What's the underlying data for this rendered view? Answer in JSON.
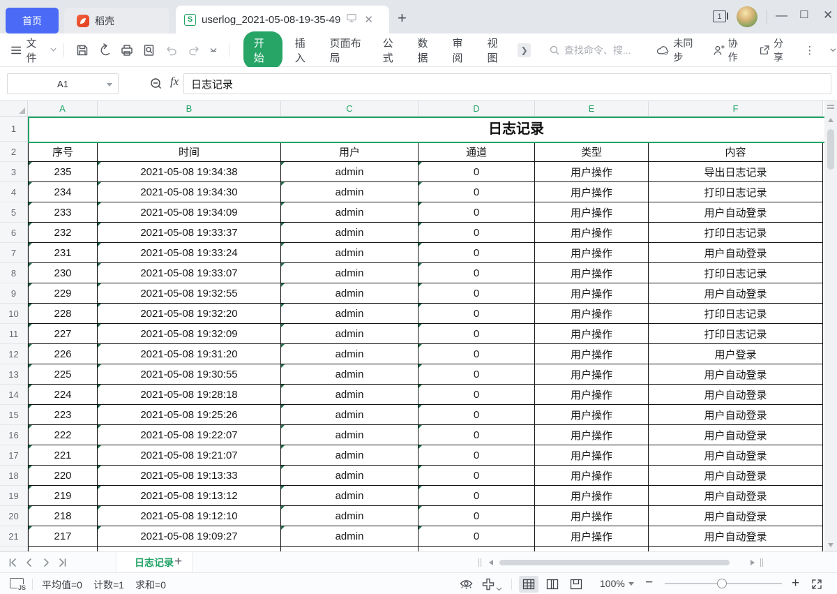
{
  "colors": {
    "accent_green": "#27a567",
    "selection_green": "#21a366",
    "home_blue": "#4b6bf7",
    "docer_orange": "#eb4b2e"
  },
  "tab_bar": {
    "home_label": "首页",
    "docer_label": "稻壳",
    "document_title": "userlog_2021-05-08-19-35-49",
    "window_count": "1"
  },
  "toolbar": {
    "file_label": "文件",
    "ribbon_tabs": [
      {
        "label": "开始",
        "active": true
      },
      {
        "label": "插入",
        "active": false
      },
      {
        "label": "页面布局",
        "active": false
      },
      {
        "label": "公式",
        "active": false
      },
      {
        "label": "数据",
        "active": false
      },
      {
        "label": "审阅",
        "active": false
      },
      {
        "label": "视图",
        "active": false
      }
    ],
    "more_label": "＞",
    "search_placeholder": "查找命令、搜...",
    "sync_label": "未同步",
    "collaborate_label": "协作",
    "share_label": "分享"
  },
  "formula_bar": {
    "name_box": "A1",
    "fx_label": "fx",
    "formula_value": "日志记录"
  },
  "grid": {
    "column_headers": [
      "A",
      "B",
      "C",
      "D",
      "E",
      "F"
    ],
    "row_numbers": [
      "1",
      "2",
      "3",
      "4",
      "5",
      "6",
      "7",
      "8",
      "9",
      "10",
      "11",
      "12",
      "13",
      "14",
      "15",
      "16",
      "17",
      "18",
      "19",
      "20",
      "21"
    ],
    "merged_title": "日志记录",
    "table_headers": [
      "序号",
      "时间",
      "用户",
      "通道",
      "类型",
      "内容"
    ],
    "rows": [
      [
        "235",
        "2021-05-08 19:34:38",
        "admin",
        "0",
        "用户操作",
        "导出日志记录"
      ],
      [
        "234",
        "2021-05-08 19:34:30",
        "admin",
        "0",
        "用户操作",
        "打印日志记录"
      ],
      [
        "233",
        "2021-05-08 19:34:09",
        "admin",
        "0",
        "用户操作",
        "用户自动登录"
      ],
      [
        "232",
        "2021-05-08 19:33:37",
        "admin",
        "0",
        "用户操作",
        "打印日志记录"
      ],
      [
        "231",
        "2021-05-08 19:33:24",
        "admin",
        "0",
        "用户操作",
        "用户自动登录"
      ],
      [
        "230",
        "2021-05-08 19:33:07",
        "admin",
        "0",
        "用户操作",
        "打印日志记录"
      ],
      [
        "229",
        "2021-05-08 19:32:55",
        "admin",
        "0",
        "用户操作",
        "用户自动登录"
      ],
      [
        "228",
        "2021-05-08 19:32:20",
        "admin",
        "0",
        "用户操作",
        "打印日志记录"
      ],
      [
        "227",
        "2021-05-08 19:32:09",
        "admin",
        "0",
        "用户操作",
        "打印日志记录"
      ],
      [
        "226",
        "2021-05-08 19:31:20",
        "admin",
        "0",
        "用户操作",
        "用户登录"
      ],
      [
        "225",
        "2021-05-08 19:30:55",
        "admin",
        "0",
        "用户操作",
        "用户自动登录"
      ],
      [
        "224",
        "2021-05-08 19:28:18",
        "admin",
        "0",
        "用户操作",
        "用户自动登录"
      ],
      [
        "223",
        "2021-05-08 19:25:26",
        "admin",
        "0",
        "用户操作",
        "用户自动登录"
      ],
      [
        "222",
        "2021-05-08 19:22:07",
        "admin",
        "0",
        "用户操作",
        "用户自动登录"
      ],
      [
        "221",
        "2021-05-08 19:21:07",
        "admin",
        "0",
        "用户操作",
        "用户自动登录"
      ],
      [
        "220",
        "2021-05-08 19:13:33",
        "admin",
        "0",
        "用户操作",
        "用户自动登录"
      ],
      [
        "219",
        "2021-05-08 19:13:12",
        "admin",
        "0",
        "用户操作",
        "用户自动登录"
      ],
      [
        "218",
        "2021-05-08 19:12:10",
        "admin",
        "0",
        "用户操作",
        "用户自动登录"
      ],
      [
        "217",
        "2021-05-08 19:09:27",
        "admin",
        "0",
        "用户操作",
        "用户自动登录"
      ]
    ]
  },
  "sheet_bar": {
    "sheet_name": "日志记录"
  },
  "status_bar": {
    "average": "平均值=0",
    "count": "计数=1",
    "sum": "求和=0",
    "zoom_level": "100%"
  }
}
